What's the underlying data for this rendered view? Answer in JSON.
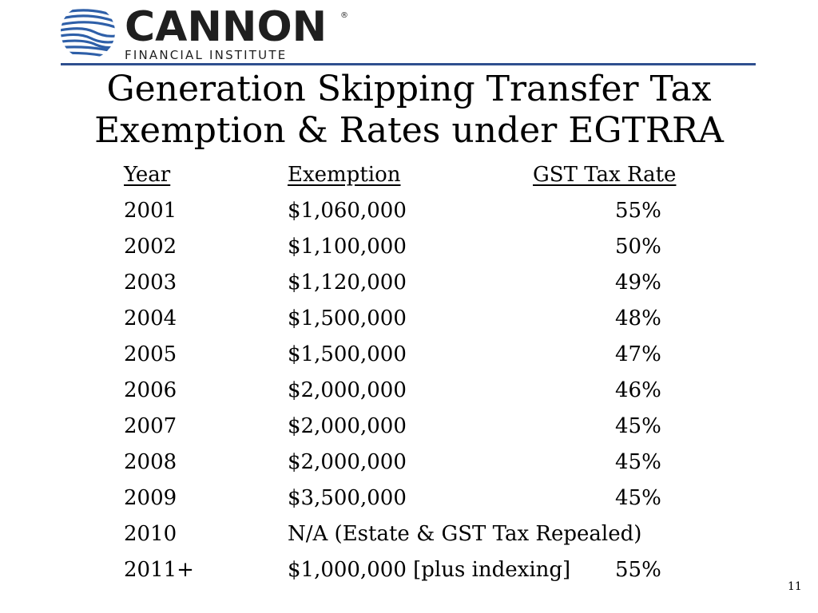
{
  "logo": {
    "name": "CANNON",
    "registered": "®",
    "subtitle": "FINANCIAL INSTITUTE",
    "icon": "cannon-swirl-logo",
    "brand_color": "#2e5fa8"
  },
  "title": {
    "line1": "Generation Skipping Transfer Tax",
    "line2": "Exemption & Rates under EGTRRA"
  },
  "table": {
    "headers": [
      "Year",
      "Exemption",
      "GST Tax Rate"
    ],
    "rows": [
      [
        "2001",
        "$1,060,000",
        "55%"
      ],
      [
        "2002",
        "$1,100,000",
        "50%"
      ],
      [
        "2003",
        "$1,120,000",
        "49%"
      ],
      [
        "2004",
        "$1,500,000",
        "48%"
      ],
      [
        "2005",
        "$1,500,000",
        "47%"
      ],
      [
        "2006",
        "$2,000,000",
        "46%"
      ],
      [
        "2007",
        "$2,000,000",
        "45%"
      ],
      [
        "2008",
        "$2,000,000",
        "45%"
      ],
      [
        "2009",
        "$3,500,000",
        "45%"
      ],
      [
        "2010",
        "N/A (Estate & GST Tax Repealed)",
        ""
      ],
      [
        "2011+",
        "$1,000,000 [plus indexing]",
        "55%"
      ]
    ]
  },
  "page_number": "11",
  "colors": {
    "rule": "#2e4f8f",
    "text": "#000000"
  }
}
